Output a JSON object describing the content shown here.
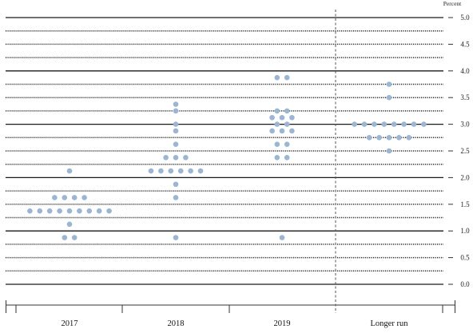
{
  "chart_data": {
    "type": "scatter",
    "ylabel": "Percent",
    "ylim": [
      0,
      5
    ],
    "yticks": [
      "0.0",
      "0.5",
      "1.0",
      "1.5",
      "2.0",
      "2.5",
      "3.0",
      "3.5",
      "4.0",
      "4.5",
      "5.0"
    ],
    "grid": true,
    "categories": [
      "2017",
      "2018",
      "2019",
      "Longer run"
    ],
    "dots": [
      [
        0.875,
        0.875,
        1.125,
        1.375,
        1.375,
        1.375,
        1.375,
        1.375,
        1.375,
        1.375,
        1.375,
        1.375,
        1.625,
        1.625,
        1.625,
        1.625,
        2.125
      ],
      [
        0.875,
        1.625,
        1.875,
        2.125,
        2.125,
        2.125,
        2.125,
        2.125,
        2.125,
        2.375,
        2.375,
        2.375,
        2.625,
        2.875,
        3.0,
        3.25,
        3.375
      ],
      [
        0.875,
        2.375,
        2.375,
        2.625,
        2.625,
        2.875,
        2.875,
        2.875,
        3.0,
        3.0,
        3.125,
        3.125,
        3.125,
        3.25,
        3.25,
        3.875,
        3.875
      ],
      [
        2.5,
        2.75,
        2.75,
        2.75,
        2.75,
        2.75,
        3.0,
        3.0,
        3.0,
        3.0,
        3.0,
        3.0,
        3.0,
        3.0,
        3.5,
        3.75
      ]
    ]
  },
  "colors": {
    "dots": "#9bb5d3",
    "grid": "#1a1a1a"
  }
}
